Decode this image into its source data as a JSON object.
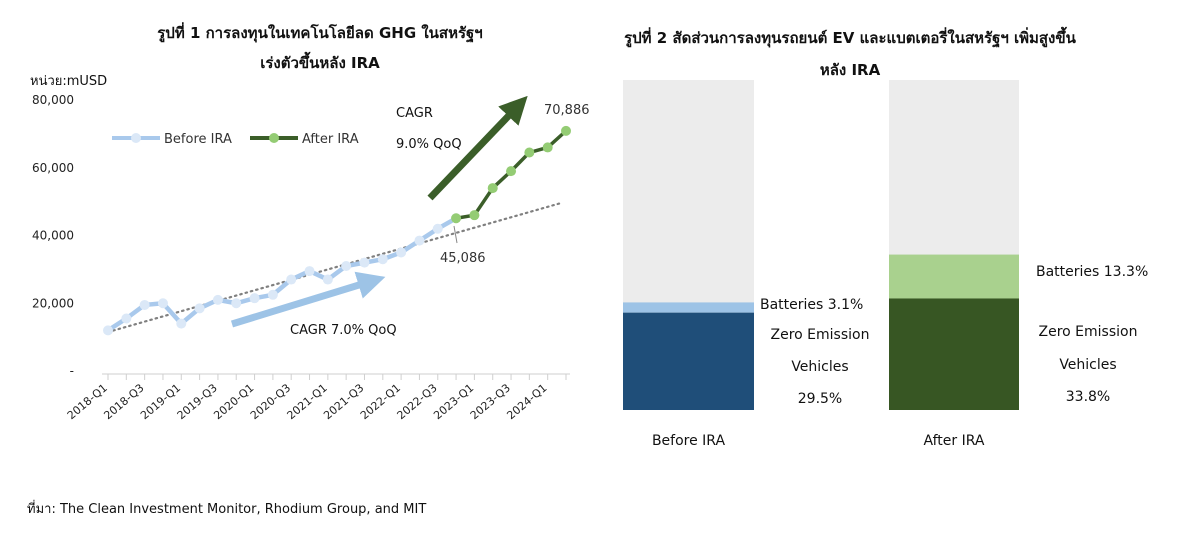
{
  "chart1": {
    "title_line1": "รูปที่ 1 การลงทุนในเทคโนโลยีลด GHG ในสหรัฐฯ",
    "title_line2": "เร่งตัวขึ้นหลัง IRA",
    "unit_label": "หน่วย:mUSD",
    "annotations": {
      "cagr_before": "CAGR 7.0% QoQ",
      "cagr_after_line1": "CAGR",
      "cagr_after_line2": "9.0% QoQ",
      "value_start_after": "45,086",
      "value_end": "70,886"
    }
  },
  "chart2": {
    "title_line1": "รูปที่ 2 สัดส่วนการลงทุนรถยนต์ EV และแบตเตอรี่ในสหรัฐฯ เพิ่มสูงขึ้น",
    "title_line2": "หลัง IRA"
  },
  "source_text": "ที่มา: The Clean Investment Monitor, Rhodium Group, and MIT",
  "colors": {
    "before_line": "#a9c9ec",
    "before_marker": "#dbe8f7",
    "after_line": "#3b5e29",
    "after_marker": "#94cc74",
    "arrow_before": "#9dc3e6",
    "arrow_after": "#3b5e29",
    "trend": "#808080",
    "bar_background": "#ececec",
    "before_zev": "#1f4e79",
    "before_batt": "#9dc3e6",
    "after_zev": "#375623",
    "after_batt": "#a9d18e"
  },
  "chart_data": [
    {
      "type": "line",
      "title": "รูปที่ 1 การลงทุนในเทคโนโลยีลด GHG ในสหรัฐฯ เร่งตัวขึ้นหลัง IRA",
      "ylabel": "หน่วย:mUSD",
      "ylim": [
        0,
        80000
      ],
      "yticks": [
        0,
        20000,
        40000,
        60000,
        80000
      ],
      "ytick_labels": [
        "-",
        "20,000",
        "40,000",
        "60,000",
        "80,000"
      ],
      "legend_position": "top-left",
      "grid": false,
      "x": [
        "2018-Q1",
        "2018-Q2",
        "2018-Q3",
        "2018-Q4",
        "2019-Q1",
        "2019-Q2",
        "2019-Q3",
        "2019-Q4",
        "2020-Q1",
        "2020-Q2",
        "2020-Q3",
        "2020-Q4",
        "2021-Q1",
        "2021-Q2",
        "2021-Q3",
        "2021-Q4",
        "2022-Q1",
        "2022-Q2",
        "2022-Q3",
        "2022-Q4",
        "2023-Q1",
        "2023-Q2",
        "2023-Q3",
        "2023-Q4",
        "2024-Q1",
        "2024-Q2"
      ],
      "x_tick_labels": [
        "2018-Q1",
        "2018-Q3",
        "2019-Q1",
        "2019-Q3",
        "2020-Q1",
        "2020-Q3",
        "2021-Q1",
        "2021-Q3",
        "2022-Q1",
        "2022-Q3",
        "2023-Q1",
        "2023-Q3",
        "2024-Q1"
      ],
      "series": [
        {
          "name": "Before IRA",
          "values": [
            12000,
            15500,
            19500,
            20000,
            14000,
            18500,
            21000,
            20000,
            21500,
            22500,
            27000,
            29500,
            27000,
            31000,
            32000,
            33000,
            35000,
            38500,
            42000,
            45086,
            null,
            null,
            null,
            null,
            null,
            null
          ]
        },
        {
          "name": "After IRA",
          "values": [
            null,
            null,
            null,
            null,
            null,
            null,
            null,
            null,
            null,
            null,
            null,
            null,
            null,
            null,
            null,
            null,
            null,
            null,
            null,
            45086,
            46000,
            54000,
            59000,
            64500,
            66000,
            70886
          ]
        }
      ],
      "trendline": {
        "style": "dotted",
        "start": 11500,
        "end": 49500
      }
    },
    {
      "type": "bar",
      "stacked": true,
      "title": "รูปที่ 2 สัดส่วนการลงทุนรถยนต์ EV และแบตเตอรี่ในสหรัฐฯ เพิ่มสูงขึ้น หลัง IRA",
      "categories": [
        "Before IRA",
        "After IRA"
      ],
      "ylim": [
        0,
        100
      ],
      "series": [
        {
          "name": "Zero Emission Vehicles",
          "values": [
            29.5,
            33.8
          ],
          "labels": [
            "Zero Emission\nVehicles\n29.5%",
            "Zero Emission\nVehicles\n33.8%"
          ]
        },
        {
          "name": "Batteries",
          "values": [
            3.1,
            13.3
          ],
          "labels": [
            "Batteries 3.1%",
            "Batteries 13.3%"
          ]
        }
      ]
    }
  ]
}
